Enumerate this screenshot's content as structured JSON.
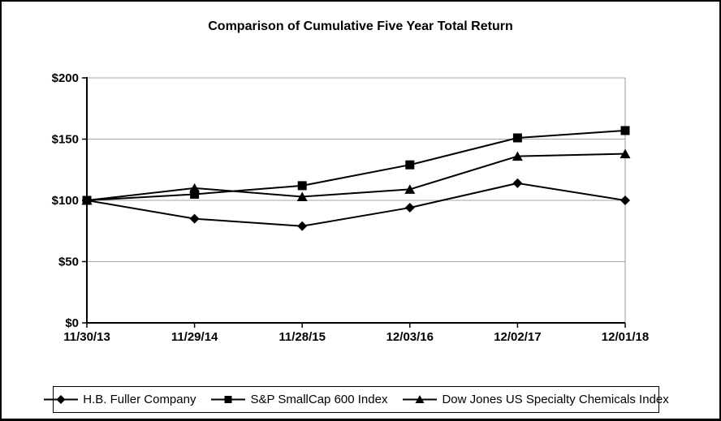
{
  "title": "Comparison of Cumulative Five Year Total Return",
  "colors": {
    "series_line": "#000000",
    "gridline": "#a6a6a6",
    "plot_border": "#999999",
    "axis": "#000000",
    "background": "#ffffff",
    "text": "#000000"
  },
  "chart_data": {
    "type": "line",
    "title": "Comparison of Cumulative Five Year Total Return",
    "categories": [
      "11/30/13",
      "11/29/14",
      "11/28/15",
      "12/03/16",
      "12/02/17",
      "12/01/18"
    ],
    "series": [
      {
        "name": "H.B. Fuller Company",
        "marker": "diamond",
        "values": [
          100,
          85,
          79,
          94,
          114,
          100
        ]
      },
      {
        "name": "S&P SmallCap 600 Index",
        "marker": "square",
        "values": [
          100,
          105,
          112,
          129,
          151,
          157
        ]
      },
      {
        "name": "Dow Jones US Specialty Chemicals Index",
        "marker": "triangle",
        "values": [
          100,
          110,
          103,
          109,
          136,
          138
        ]
      }
    ],
    "y_ticks": [
      "$0",
      "$50",
      "$100",
      "$150",
      "$200"
    ],
    "y_tick_values": [
      0,
      50,
      100,
      150,
      200
    ],
    "ylim": [
      0,
      200
    ],
    "grid": true,
    "legend_position": "bottom"
  }
}
